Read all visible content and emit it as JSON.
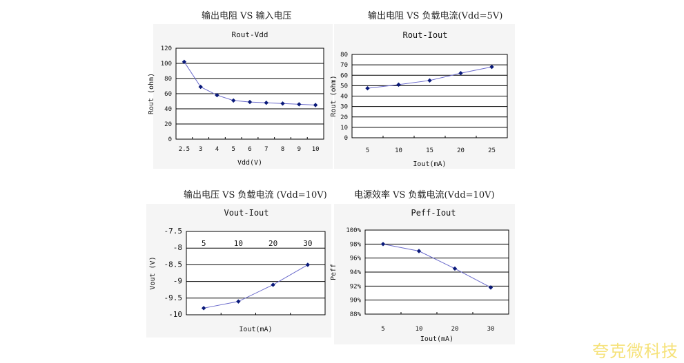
{
  "brand": "夸克微科技",
  "charts_meta": {
    "colors": {
      "line": "#6a6acb",
      "marker": "#0a1a7a",
      "grid": "#000000",
      "bg": "#f4f4f4"
    }
  },
  "chart_data": [
    {
      "type": "line",
      "heading": "输出电阻 VS 输入电压",
      "title": "Rout-Vdd",
      "xlabel": "Vdd(V)",
      "ylabel": "Rout (ohm)",
      "categories": [
        "2.5",
        "3",
        "4",
        "5",
        "6",
        "7",
        "8",
        "9",
        "10"
      ],
      "values": [
        102,
        69,
        58,
        51,
        49,
        48,
        47,
        46,
        45
      ],
      "ylim": [
        0,
        120
      ],
      "yticks": [
        "0",
        "20",
        "40",
        "60",
        "80",
        "100",
        "120"
      ],
      "grid": true,
      "xticks_position": "bottom"
    },
    {
      "type": "line",
      "heading": "输出电阻 VS 负载电流(Vdd=5V)",
      "title": "Rout-Iout",
      "xlabel": "Iout(mA)",
      "ylabel": "Rout (ohm)",
      "categories": [
        "5",
        "10",
        "15",
        "20",
        "25"
      ],
      "values": [
        47.5,
        51,
        55,
        62,
        68
      ],
      "ylim": [
        0,
        80
      ],
      "yticks": [
        "0",
        "10",
        "20",
        "30",
        "40",
        "50",
        "60",
        "70",
        "80"
      ],
      "grid": true,
      "xticks_position": "bottom"
    },
    {
      "type": "line",
      "heading": "输出电压 VS 负载电流 (Vdd=10V)",
      "title": "Vout-Iout",
      "xlabel": "Iout(mA)",
      "ylabel": "Vout (V)",
      "categories": [
        "5",
        "10",
        "20",
        "30"
      ],
      "values": [
        -9.8,
        -9.6,
        -9.1,
        -8.5
      ],
      "ylim": [
        -10,
        -7.5
      ],
      "yticks": [
        "-10",
        "-9.5",
        "-9",
        "-8.5",
        "-8",
        "-7.5"
      ],
      "grid": true,
      "xticks_position": "top"
    },
    {
      "type": "line",
      "heading": "电源效率 VS 负载电流(Vdd=10V)",
      "title": "Peff-Iout",
      "xlabel": "Iout(mA)",
      "ylabel": "Peff",
      "categories": [
        "5",
        "10",
        "20",
        "30"
      ],
      "values": [
        98,
        97,
        94.5,
        91.8
      ],
      "ylim": [
        88,
        100
      ],
      "yticks": [
        "88%",
        "90%",
        "92%",
        "94%",
        "96%",
        "98%",
        "100%"
      ],
      "grid": true,
      "xticks_position": "bottom"
    }
  ]
}
